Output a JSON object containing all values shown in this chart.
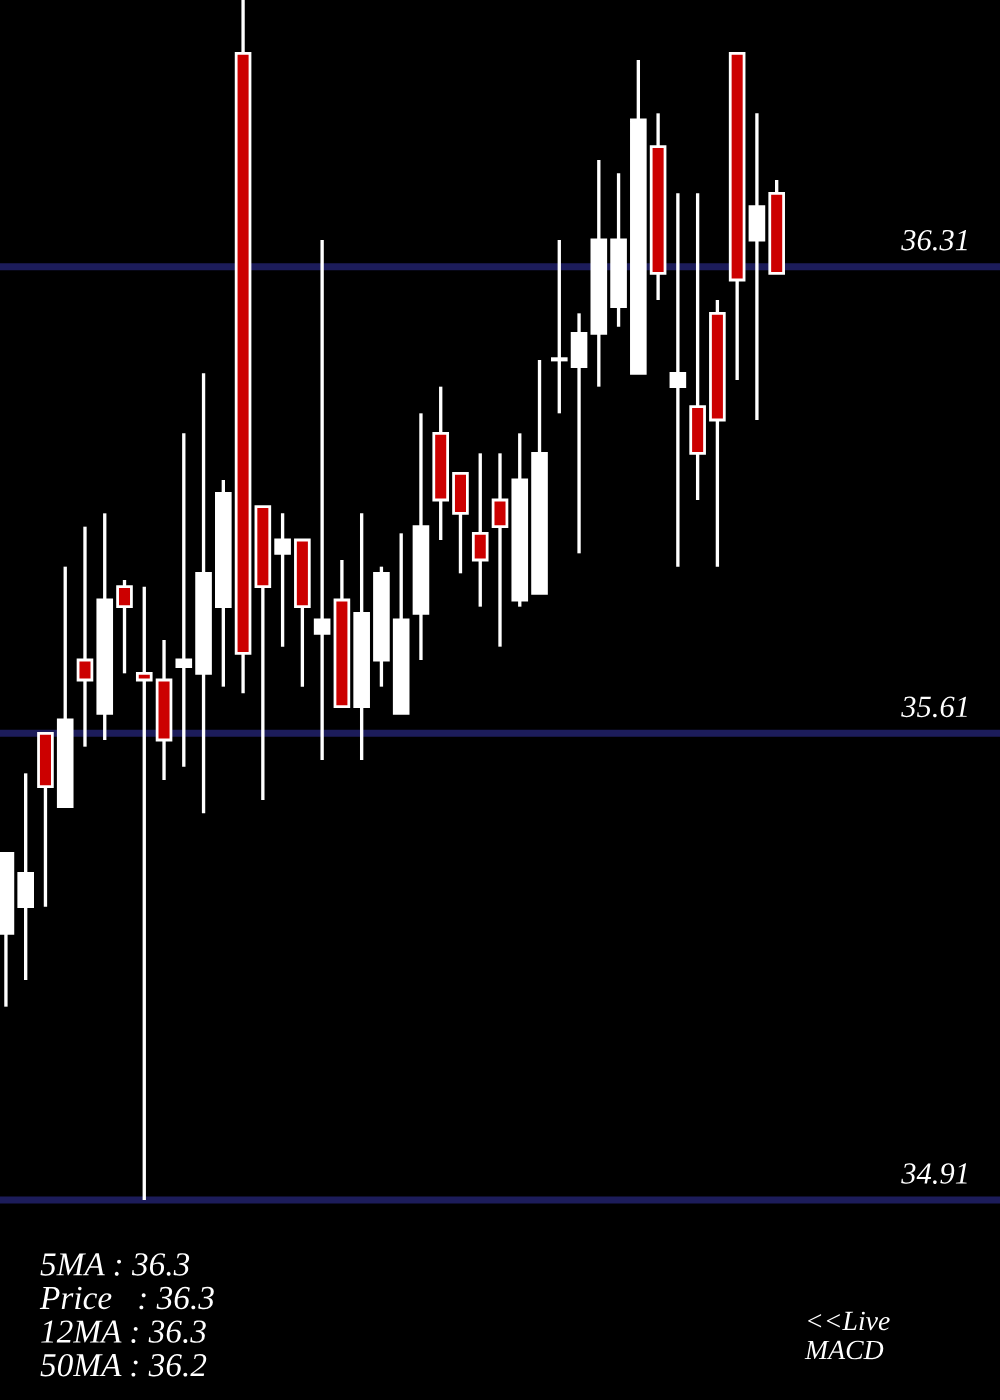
{
  "chart_data": {
    "type": "candlestick",
    "categories": [
      null,
      null,
      null,
      null,
      null,
      null,
      null,
      null,
      null,
      null,
      null,
      null,
      null,
      null,
      null,
      null,
      null,
      null,
      null,
      null,
      null,
      null,
      null,
      null,
      null,
      null,
      null,
      null,
      null,
      null,
      null,
      null,
      null,
      null,
      null,
      null,
      null,
      null,
      null,
      null
    ],
    "ohlc": [
      [
        35.31,
        35.43,
        35.2,
        35.43
      ],
      [
        35.35,
        35.55,
        35.24,
        35.4
      ],
      [
        35.61,
        35.61,
        35.35,
        35.53
      ],
      [
        35.5,
        35.86,
        35.5,
        35.63
      ],
      [
        35.72,
        35.92,
        35.59,
        35.69
      ],
      [
        35.64,
        35.94,
        35.6,
        35.81
      ],
      [
        35.83,
        35.84,
        35.7,
        35.8
      ],
      [
        35.7,
        35.83,
        34.91,
        35.69
      ],
      [
        35.69,
        35.75,
        35.54,
        35.6
      ],
      [
        35.71,
        36.06,
        35.56,
        35.72
      ],
      [
        35.7,
        36.15,
        35.49,
        35.85
      ],
      [
        35.8,
        35.99,
        35.68,
        35.97
      ],
      [
        36.63,
        36.71,
        35.67,
        35.73
      ],
      [
        35.95,
        35.95,
        35.51,
        35.83
      ],
      [
        35.88,
        35.94,
        35.74,
        35.9
      ],
      [
        35.9,
        35.9,
        35.68,
        35.8
      ],
      [
        35.76,
        36.35,
        35.57,
        35.78
      ],
      [
        35.81,
        35.87,
        35.65,
        35.65
      ],
      [
        35.65,
        35.94,
        35.57,
        35.79
      ],
      [
        35.72,
        35.86,
        35.68,
        35.85
      ],
      [
        35.64,
        35.91,
        35.64,
        35.78
      ],
      [
        35.79,
        36.09,
        35.72,
        35.92
      ],
      [
        36.06,
        36.13,
        35.9,
        35.96
      ],
      [
        36.0,
        36.0,
        35.85,
        35.94
      ],
      [
        35.91,
        36.03,
        35.8,
        35.87
      ],
      [
        35.96,
        36.03,
        35.74,
        35.92
      ],
      [
        35.81,
        36.06,
        35.8,
        35.99
      ],
      [
        35.82,
        36.17,
        35.82,
        36.03
      ],
      [
        36.17,
        36.35,
        36.09,
        36.17
      ],
      [
        36.16,
        36.24,
        35.88,
        36.21
      ],
      [
        36.21,
        36.47,
        36.13,
        36.35
      ],
      [
        36.25,
        36.45,
        36.22,
        36.35
      ],
      [
        36.15,
        36.62,
        36.15,
        36.53
      ],
      [
        36.49,
        36.54,
        36.26,
        36.3
      ],
      [
        36.13,
        36.42,
        35.86,
        36.15
      ],
      [
        36.1,
        36.42,
        35.96,
        36.03
      ],
      [
        36.24,
        36.26,
        35.86,
        36.08
      ],
      [
        36.63,
        36.63,
        36.14,
        36.29
      ],
      [
        36.35,
        36.54,
        36.08,
        36.4
      ],
      [
        36.42,
        36.44,
        36.3,
        36.3
      ]
    ],
    "colors": [
      "#ffffff",
      "#ffffff",
      "#cc0000",
      "#ffffff",
      "#cc0000",
      "#ffffff",
      "#cc0000",
      "#cc0000",
      "#cc0000",
      "#ffffff",
      "#ffffff",
      "#ffffff",
      "#cc0000",
      "#cc0000",
      "#ffffff",
      "#cc0000",
      "#ffffff",
      "#cc0000",
      "#ffffff",
      "#ffffff",
      "#ffffff",
      "#ffffff",
      "#cc0000",
      "#cc0000",
      "#cc0000",
      "#cc0000",
      "#ffffff",
      "#ffffff",
      "#ffffff",
      "#ffffff",
      "#ffffff",
      "#ffffff",
      "#ffffff",
      "#cc0000",
      "#ffffff",
      "#cc0000",
      "#cc0000",
      "#cc0000",
      "#ffffff",
      "#cc0000"
    ],
    "ylim": [
      34.61,
      36.71
    ],
    "ref_lines": [
      {
        "axis": "y",
        "value": 36.31,
        "label": "36.31",
        "color": "#1c1c5a"
      },
      {
        "axis": "y",
        "value": 35.61,
        "label": "35.61",
        "color": "#1c1c5a"
      },
      {
        "axis": "y",
        "value": 34.91,
        "label": "34.91",
        "color": "#1c1c5a"
      }
    ],
    "annotations": [
      "5MA : 36.3",
      "Price   : 36.3",
      "12MA : 36.3",
      "50MA : 36.2",
      "<<Live\nMACD"
    ],
    "grid": false,
    "legend": false
  }
}
